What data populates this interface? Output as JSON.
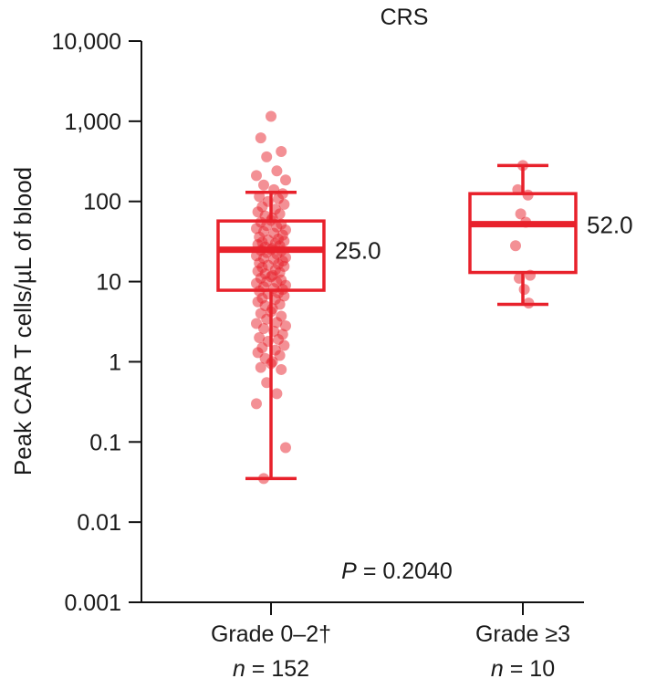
{
  "chart_data": {
    "type": "box",
    "title": "CRS",
    "ylabel": "Peak CAR T cells/µL of blood",
    "yscale": "log",
    "ylim": [
      0.001,
      10000
    ],
    "yticks": [
      {
        "value": 0.001,
        "label": "0.001"
      },
      {
        "value": 0.01,
        "label": "0.01"
      },
      {
        "value": 0.1,
        "label": "0.1"
      },
      {
        "value": 1,
        "label": "1"
      },
      {
        "value": 10,
        "label": "10"
      },
      {
        "value": 100,
        "label": "100"
      },
      {
        "value": 1000,
        "label": "1,000"
      },
      {
        "value": 10000,
        "label": "10,000"
      }
    ],
    "groups": [
      {
        "label": "Grade 0–2†",
        "n_label": "n = 152",
        "n_prefix": "n",
        "n_value": "= 152",
        "median": 25.0,
        "median_label": "25.0",
        "q1": 7.8,
        "q3": 57,
        "whisker_low": 0.035,
        "whisker_high": 130,
        "points": [
          1150,
          620,
          420,
          360,
          240,
          210,
          185,
          160,
          140,
          125,
          115,
          108,
          100,
          92,
          86,
          80,
          74,
          70,
          66,
          62,
          58,
          55,
          52,
          50,
          48,
          46,
          44,
          42,
          40,
          38,
          36,
          34,
          33,
          32,
          31,
          30,
          29,
          28,
          27,
          26,
          25,
          24.5,
          24,
          23,
          22,
          21,
          20,
          19.5,
          19,
          18,
          17,
          16.5,
          16,
          15.5,
          15,
          14,
          13.5,
          13,
          12.5,
          12,
          11.5,
          11,
          10.5,
          10,
          9.8,
          9.5,
          9,
          8.6,
          8.2,
          8,
          7.6,
          7.2,
          7,
          6.6,
          6.2,
          6,
          5.6,
          5.2,
          5,
          4.6,
          4.2,
          4,
          3.7,
          3.4,
          3.1,
          3,
          2.8,
          2.6,
          2.4,
          2.2,
          2,
          1.9,
          1.8,
          1.6,
          1.5,
          1.4,
          1.3,
          1.2,
          1.1,
          1,
          0.95,
          0.85,
          0.8,
          0.55,
          0.4,
          0.3,
          0.085,
          0.035
        ],
        "color": "#e8212b"
      },
      {
        "label": "Grade ≥3",
        "n_label": "n = 10",
        "n_prefix": "n",
        "n_value": "= 10",
        "median": 52.0,
        "median_label": "52.0",
        "q1": 13,
        "q3": 125,
        "whisker_low": 5.2,
        "whisker_high": 280,
        "points": [
          280,
          140,
          120,
          70,
          55,
          28,
          12,
          11,
          8,
          5.4
        ],
        "color": "#e8212b"
      }
    ],
    "p_label": "P",
    "p_value": "= 0.2040",
    "grid": false,
    "legend": "none"
  }
}
